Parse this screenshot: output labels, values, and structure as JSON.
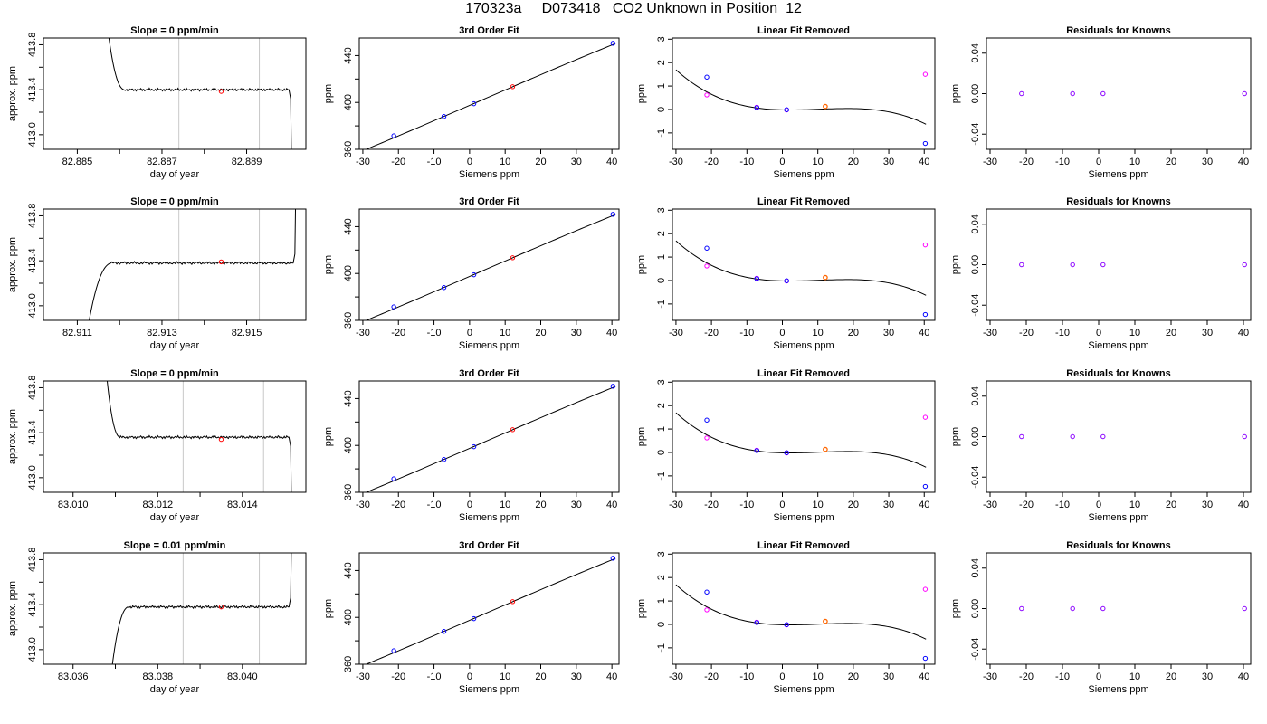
{
  "page_title": "170323a     D073418   CO2 Unknown in Position  12",
  "colors": {
    "trace": "#000000",
    "frame": "#000000",
    "marker_line": "#c8c8c8",
    "unknown": "#ff0000",
    "known": "#0000ff",
    "raw_offset": "#ff00ff",
    "fit_unknown": "#ff6600",
    "residual": "#8a00ff"
  },
  "chart_data": [
    {
      "type": "line",
      "panel": "time-series",
      "row": 1,
      "title": "Slope =  0  ppm/min",
      "xlabel": "day of year",
      "ylabel": "approx. ppm",
      "xlim": [
        82.8842,
        82.8904
      ],
      "ylim": [
        412.87,
        413.86
      ],
      "xticks": [
        82.885,
        82.886,
        82.887,
        82.888,
        82.889
      ],
      "xtick_labels": [
        "82.885",
        "",
        "82.887",
        "",
        "82.889"
      ],
      "yticks": [
        413.0,
        413.2,
        413.4,
        413.6,
        413.8
      ],
      "ytick_labels": [
        "413.0",
        "",
        "413.4",
        "",
        "413.8"
      ],
      "marker_lines": [
        82.8874,
        82.8893
      ],
      "sample_point": {
        "x": 82.8884,
        "y": 413.385
      },
      "trace": {
        "start": 82.8856,
        "plateau_start": 82.8861,
        "end": 82.89,
        "level": 413.4,
        "approach": "from-above",
        "end_drop": "down"
      }
    },
    {
      "type": "line",
      "panel": "time-series",
      "row": 2,
      "title": "Slope =  0  ppm/min",
      "xlabel": "day of year",
      "ylabel": "approx. ppm",
      "xlim": [
        82.9102,
        82.9164
      ],
      "ylim": [
        412.87,
        413.86
      ],
      "xticks": [
        82.911,
        82.912,
        82.913,
        82.914,
        82.915
      ],
      "xtick_labels": [
        "82.911",
        "",
        "82.913",
        "",
        "82.915"
      ],
      "yticks": [
        413.0,
        413.2,
        413.4,
        413.6,
        413.8
      ],
      "ytick_labels": [
        "413.0",
        "",
        "413.4",
        "",
        "413.8"
      ],
      "marker_lines": [
        82.9134,
        82.9153
      ],
      "sample_point": {
        "x": 82.9144,
        "y": 413.39
      },
      "trace": {
        "start": 82.9111,
        "plateau_start": 82.9118,
        "end": 82.9161,
        "level": 413.38,
        "approach": "from-below",
        "end_drop": "up"
      }
    },
    {
      "type": "line",
      "panel": "time-series",
      "row": 3,
      "title": "Slope =  0  ppm/min",
      "xlabel": "day of year",
      "ylabel": "approx. ppm",
      "xlim": [
        83.0093,
        83.0155
      ],
      "ylim": [
        412.87,
        413.86
      ],
      "xticks": [
        83.01,
        83.011,
        83.012,
        83.013,
        83.014
      ],
      "xtick_labels": [
        "83.010",
        "",
        "83.012",
        "",
        "83.014"
      ],
      "yticks": [
        413.0,
        413.2,
        413.4,
        413.6,
        413.8
      ],
      "ytick_labels": [
        "413.0",
        "",
        "413.4",
        "",
        "413.8"
      ],
      "marker_lines": [
        83.0126,
        83.0145
      ],
      "sample_point": {
        "x": 83.0135,
        "y": 413.34
      },
      "trace": {
        "start": 83.0107,
        "plateau_start": 83.0111,
        "end": 83.0151,
        "level": 413.36,
        "approach": "from-above",
        "end_drop": "down"
      }
    },
    {
      "type": "line",
      "panel": "time-series",
      "row": 4,
      "title": "Slope =  0.01  ppm/min",
      "xlabel": "day of year",
      "ylabel": "approx. ppm",
      "xlim": [
        83.0353,
        83.0415
      ],
      "ylim": [
        412.87,
        413.86
      ],
      "xticks": [
        83.036,
        83.037,
        83.038,
        83.039,
        83.04
      ],
      "xtick_labels": [
        "83.036",
        "",
        "83.038",
        "",
        "83.040"
      ],
      "yticks": [
        413.0,
        413.2,
        413.4,
        413.6,
        413.8
      ],
      "ytick_labels": [
        "413.0",
        "",
        "413.4",
        "",
        "413.8"
      ],
      "marker_lines": [
        83.0386,
        83.0404
      ],
      "sample_point": {
        "x": 83.0395,
        "y": 413.38
      },
      "trace": {
        "start": 83.0368,
        "plateau_start": 83.0373,
        "end": 83.0411,
        "level": 413.38,
        "approach": "from-below",
        "end_drop": "up"
      }
    },
    {
      "type": "scatter",
      "panel": "fit",
      "row": 1,
      "title": "3rd Order Fit",
      "xlabel": "Siemens ppm",
      "ylabel": "ppm",
      "xlim": [
        -31,
        42
      ],
      "ylim": [
        360,
        455
      ],
      "xticks": [
        -30,
        -20,
        -10,
        0,
        10,
        20,
        30,
        40
      ],
      "yticks": [
        360,
        380,
        400,
        420,
        440
      ],
      "ytick_labels": [
        "360",
        "",
        "400",
        "",
        "440"
      ],
      "knowns": [
        {
          "x": -21.3,
          "y": 371.5
        },
        {
          "x": -7.2,
          "y": 388.0
        },
        {
          "x": 1.2,
          "y": 398.9
        },
        {
          "x": 40.3,
          "y": 450.5
        }
      ],
      "unknown": {
        "x": 12.1,
        "y": 413.4
      },
      "curve": {
        "x_from": -30,
        "x_to": 41,
        "y_at_0": 397.5,
        "slope": 1.314,
        "quadratic": 0.0002,
        "cubic": -2.1e-05
      }
    },
    {
      "type": "scatter",
      "panel": "fit",
      "row": 2,
      "title": "3rd Order Fit",
      "xlabel": "Siemens ppm",
      "ylabel": "ppm",
      "xlim": [
        -31,
        42
      ],
      "ylim": [
        360,
        455
      ],
      "xticks": [
        -30,
        -20,
        -10,
        0,
        10,
        20,
        30,
        40
      ],
      "yticks": [
        360,
        380,
        400,
        420,
        440
      ],
      "ytick_labels": [
        "360",
        "",
        "400",
        "",
        "440"
      ],
      "knowns": [
        {
          "x": -21.3,
          "y": 371.5
        },
        {
          "x": -7.2,
          "y": 388.0
        },
        {
          "x": 1.2,
          "y": 398.9
        },
        {
          "x": 40.3,
          "y": 450.5
        }
      ],
      "unknown": {
        "x": 12.1,
        "y": 413.4
      },
      "curve": {
        "x_from": -30,
        "x_to": 41,
        "y_at_0": 397.5,
        "slope": 1.314,
        "quadratic": 0.0002,
        "cubic": -2.1e-05
      }
    },
    {
      "type": "scatter",
      "panel": "fit",
      "row": 3,
      "title": "3rd Order Fit",
      "xlabel": "Siemens ppm",
      "ylabel": "ppm",
      "xlim": [
        -31,
        42
      ],
      "ylim": [
        360,
        455
      ],
      "xticks": [
        -30,
        -20,
        -10,
        0,
        10,
        20,
        30,
        40
      ],
      "yticks": [
        360,
        380,
        400,
        420,
        440
      ],
      "ytick_labels": [
        "360",
        "",
        "400",
        "",
        "440"
      ],
      "knowns": [
        {
          "x": -21.3,
          "y": 371.5
        },
        {
          "x": -7.2,
          "y": 388.0
        },
        {
          "x": 1.2,
          "y": 398.9
        },
        {
          "x": 40.3,
          "y": 450.5
        }
      ],
      "unknown": {
        "x": 12.1,
        "y": 413.4
      },
      "curve": {
        "x_from": -30,
        "x_to": 41,
        "y_at_0": 397.5,
        "slope": 1.314,
        "quadratic": 0.0002,
        "cubic": -2.1e-05
      }
    },
    {
      "type": "scatter",
      "panel": "fit",
      "row": 4,
      "title": "3rd Order Fit",
      "xlabel": "Siemens ppm",
      "ylabel": "ppm",
      "xlim": [
        -31,
        42
      ],
      "ylim": [
        360,
        455
      ],
      "xticks": [
        -30,
        -20,
        -10,
        0,
        10,
        20,
        30,
        40
      ],
      "yticks": [
        360,
        380,
        400,
        420,
        440
      ],
      "ytick_labels": [
        "360",
        "",
        "400",
        "",
        "440"
      ],
      "knowns": [
        {
          "x": -21.3,
          "y": 371.5
        },
        {
          "x": -7.2,
          "y": 388.0
        },
        {
          "x": 1.2,
          "y": 398.9
        },
        {
          "x": 40.3,
          "y": 450.5
        }
      ],
      "unknown": {
        "x": 12.1,
        "y": 413.4
      },
      "curve": {
        "x_from": -30,
        "x_to": 41,
        "y_at_0": 397.5,
        "slope": 1.314,
        "quadratic": 0.0002,
        "cubic": -2.1e-05
      }
    },
    {
      "type": "scatter",
      "panel": "linear-removed",
      "row": 1,
      "title": "Linear Fit Removed",
      "xlabel": "Siemens ppm",
      "ylabel": "ppm",
      "xlim": [
        -31,
        43
      ],
      "ylim": [
        -1.7,
        3.05
      ],
      "xticks": [
        -30,
        -20,
        -10,
        0,
        10,
        20,
        30,
        40
      ],
      "yticks": [
        -1,
        0,
        1,
        2,
        3
      ],
      "knowns": [
        {
          "x": -21.3,
          "y": 1.38
        },
        {
          "x": -7.2,
          "y": 0.08
        },
        {
          "x": 1.2,
          "y": -0.01
        },
        {
          "x": 40.3,
          "y": -1.45
        }
      ],
      "raw_points": [
        {
          "x": -21.3,
          "y": 0.62
        },
        {
          "x": -7.2,
          "y": 0.1
        },
        {
          "x": 1.2,
          "y": -0.02
        },
        {
          "x": 40.3,
          "y": 1.5
        }
      ],
      "unknown": {
        "x": 12.1,
        "y": 0.13
      },
      "curve": {
        "x_from": -30,
        "x_to": 40.5,
        "coeffs": [
          -0.0171,
          -0.00347,
          0.000902,
          -2.94e-05
        ]
      }
    },
    {
      "type": "scatter",
      "panel": "linear-removed",
      "row": 2,
      "title": "Linear Fit Removed",
      "xlabel": "Siemens ppm",
      "ylabel": "ppm",
      "xlim": [
        -31,
        43
      ],
      "ylim": [
        -1.7,
        3.05
      ],
      "xticks": [
        -30,
        -20,
        -10,
        0,
        10,
        20,
        30,
        40
      ],
      "yticks": [
        -1,
        0,
        1,
        2,
        3
      ],
      "knowns": [
        {
          "x": -21.3,
          "y": 1.38
        },
        {
          "x": -7.2,
          "y": 0.08
        },
        {
          "x": 1.2,
          "y": -0.01
        },
        {
          "x": 40.3,
          "y": -1.45
        }
      ],
      "raw_points": [
        {
          "x": -21.3,
          "y": 0.62
        },
        {
          "x": -7.2,
          "y": 0.1
        },
        {
          "x": 1.2,
          "y": -0.02
        },
        {
          "x": 40.3,
          "y": 1.52
        }
      ],
      "unknown": {
        "x": 12.1,
        "y": 0.13
      },
      "curve": {
        "x_from": -30,
        "x_to": 40.5,
        "coeffs": [
          -0.0171,
          -0.00347,
          0.000902,
          -2.94e-05
        ]
      }
    },
    {
      "type": "scatter",
      "panel": "linear-removed",
      "row": 3,
      "title": "Linear Fit Removed",
      "xlabel": "Siemens ppm",
      "ylabel": "ppm",
      "xlim": [
        -31,
        43
      ],
      "ylim": [
        -1.7,
        3.05
      ],
      "xticks": [
        -30,
        -20,
        -10,
        0,
        10,
        20,
        30,
        40
      ],
      "yticks": [
        -1,
        0,
        1,
        2,
        3
      ],
      "knowns": [
        {
          "x": -21.3,
          "y": 1.38
        },
        {
          "x": -7.2,
          "y": 0.08
        },
        {
          "x": 1.2,
          "y": -0.01
        },
        {
          "x": 40.3,
          "y": -1.45
        }
      ],
      "raw_points": [
        {
          "x": -21.3,
          "y": 0.62
        },
        {
          "x": -7.2,
          "y": 0.1
        },
        {
          "x": 1.2,
          "y": -0.02
        },
        {
          "x": 40.3,
          "y": 1.5
        }
      ],
      "unknown": {
        "x": 12.1,
        "y": 0.13
      },
      "curve": {
        "x_from": -30,
        "x_to": 40.5,
        "coeffs": [
          -0.0171,
          -0.00347,
          0.000902,
          -2.94e-05
        ]
      }
    },
    {
      "type": "scatter",
      "panel": "linear-removed",
      "row": 4,
      "title": "Linear Fit Removed",
      "xlabel": "Siemens ppm",
      "ylabel": "ppm",
      "xlim": [
        -31,
        43
      ],
      "ylim": [
        -1.7,
        3.05
      ],
      "xticks": [
        -30,
        -20,
        -10,
        0,
        10,
        20,
        30,
        40
      ],
      "yticks": [
        -1,
        0,
        1,
        2,
        3
      ],
      "knowns": [
        {
          "x": -21.3,
          "y": 1.38
        },
        {
          "x": -7.2,
          "y": 0.08
        },
        {
          "x": 1.2,
          "y": -0.01
        },
        {
          "x": 40.3,
          "y": -1.45
        }
      ],
      "raw_points": [
        {
          "x": -21.3,
          "y": 0.62
        },
        {
          "x": -7.2,
          "y": 0.1
        },
        {
          "x": 1.2,
          "y": -0.02
        },
        {
          "x": 40.3,
          "y": 1.5
        }
      ],
      "unknown": {
        "x": 12.1,
        "y": 0.13
      },
      "curve": {
        "x_from": -30,
        "x_to": 40.5,
        "coeffs": [
          -0.0171,
          -0.00347,
          0.000902,
          -2.94e-05
        ]
      }
    },
    {
      "type": "scatter",
      "panel": "residuals",
      "row": 1,
      "title": "Residuals for Knowns",
      "xlabel": "Siemens ppm",
      "ylabel": "ppm",
      "xlim": [
        -31,
        42
      ],
      "ylim": [
        -0.055,
        0.055
      ],
      "xticks": [
        -30,
        -20,
        -10,
        0,
        10,
        20,
        30,
        40
      ],
      "yticks": [
        -0.04,
        0,
        0.04
      ],
      "ytick_labels": [
        "-0.04",
        "0.00",
        "0.04"
      ],
      "points": [
        {
          "x": -21.3,
          "y": 0
        },
        {
          "x": -7.2,
          "y": 0
        },
        {
          "x": 1.2,
          "y": 0
        },
        {
          "x": 40.3,
          "y": 0
        }
      ]
    },
    {
      "type": "scatter",
      "panel": "residuals",
      "row": 2,
      "title": "Residuals for Knowns",
      "xlabel": "Siemens ppm",
      "ylabel": "ppm",
      "xlim": [
        -31,
        42
      ],
      "ylim": [
        -0.055,
        0.055
      ],
      "xticks": [
        -30,
        -20,
        -10,
        0,
        10,
        20,
        30,
        40
      ],
      "yticks": [
        -0.04,
        0,
        0.04
      ],
      "ytick_labels": [
        "-0.04",
        "0.00",
        "0.04"
      ],
      "points": [
        {
          "x": -21.3,
          "y": 0
        },
        {
          "x": -7.2,
          "y": 0
        },
        {
          "x": 1.2,
          "y": 0
        },
        {
          "x": 40.3,
          "y": 0
        }
      ]
    },
    {
      "type": "scatter",
      "panel": "residuals",
      "row": 3,
      "title": "Residuals for Knowns",
      "xlabel": "Siemens ppm",
      "ylabel": "ppm",
      "xlim": [
        -31,
        42
      ],
      "ylim": [
        -0.055,
        0.055
      ],
      "xticks": [
        -30,
        -20,
        -10,
        0,
        10,
        20,
        30,
        40
      ],
      "yticks": [
        -0.04,
        0,
        0.04
      ],
      "ytick_labels": [
        "-0.04",
        "0.00",
        "0.04"
      ],
      "points": [
        {
          "x": -21.3,
          "y": 0
        },
        {
          "x": -7.2,
          "y": 0
        },
        {
          "x": 1.2,
          "y": 0
        },
        {
          "x": 40.3,
          "y": 0
        }
      ]
    },
    {
      "type": "scatter",
      "panel": "residuals",
      "row": 4,
      "title": "Residuals for Knowns",
      "xlabel": "Siemens ppm",
      "ylabel": "ppm",
      "xlim": [
        -31,
        42
      ],
      "ylim": [
        -0.055,
        0.055
      ],
      "xticks": [
        -30,
        -20,
        -10,
        0,
        10,
        20,
        30,
        40
      ],
      "yticks": [
        -0.04,
        0,
        0.04
      ],
      "ytick_labels": [
        "-0.04",
        "0.00",
        "0.04"
      ],
      "points": [
        {
          "x": -21.3,
          "y": 0
        },
        {
          "x": -7.2,
          "y": 0
        },
        {
          "x": 1.2,
          "y": 0
        },
        {
          "x": 40.3,
          "y": 0
        }
      ]
    }
  ]
}
